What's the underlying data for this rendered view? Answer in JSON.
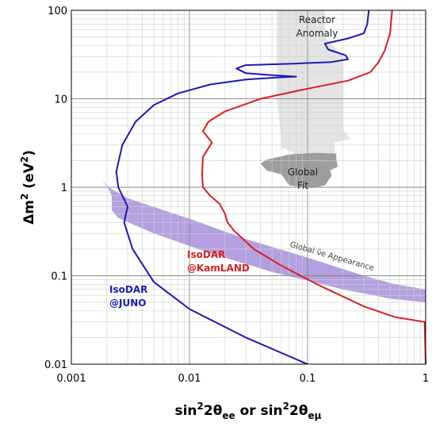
{
  "chart_data": {
    "type": "line",
    "xscale": "log",
    "yscale": "log",
    "xlim": [
      0.001,
      1
    ],
    "ylim": [
      0.01,
      100
    ],
    "grid": true,
    "xlabel_main": "sin",
    "xlabel_sup": "2",
    "xlabel_theta": "2θ",
    "xlabel_sub1": "ee",
    "xlabel_or": " or ",
    "xlabel_sub2": "eμ",
    "ylabel_main": "Δm",
    "ylabel_sup": "2",
    "ylabel_unit_open": " (eV",
    "ylabel_unit_sup": "2",
    "ylabel_unit_close": ")",
    "xticks": [
      {
        "v": 0.001,
        "label": "0.001"
      },
      {
        "v": 0.01,
        "label": "0.01"
      },
      {
        "v": 0.1,
        "label": "0.1"
      },
      {
        "v": 1,
        "label": "1"
      }
    ],
    "yticks": [
      {
        "v": 0.01,
        "label": "0.01"
      },
      {
        "v": 0.1,
        "label": "0.1"
      },
      {
        "v": 1,
        "label": "1"
      },
      {
        "v": 10,
        "label": "10"
      },
      {
        "v": 100,
        "label": "100"
      }
    ],
    "series": [
      {
        "name": "IsoDAR @JUNO",
        "color": "#1a1ab8",
        "points": [
          [
            0.1,
            0.01
          ],
          [
            0.03,
            0.02
          ],
          [
            0.01,
            0.042
          ],
          [
            0.005,
            0.085
          ],
          [
            0.0033,
            0.2
          ],
          [
            0.0028,
            0.4
          ],
          [
            0.003,
            0.6
          ],
          [
            0.0025,
            1.0
          ],
          [
            0.0024,
            1.5
          ],
          [
            0.0027,
            3
          ],
          [
            0.0035,
            5.5
          ],
          [
            0.005,
            8.5
          ],
          [
            0.008,
            11.5
          ],
          [
            0.015,
            14.5
          ],
          [
            0.03,
            16.5
          ],
          [
            0.06,
            17.5
          ],
          [
            0.08,
            17.8
          ],
          [
            0.05,
            18.5
          ],
          [
            0.03,
            19.5
          ],
          [
            0.025,
            22
          ],
          [
            0.03,
            24
          ],
          [
            0.08,
            25
          ],
          [
            0.16,
            26
          ],
          [
            0.22,
            28
          ],
          [
            0.21,
            31
          ],
          [
            0.15,
            36
          ],
          [
            0.14,
            42
          ],
          [
            0.22,
            48
          ],
          [
            0.3,
            55
          ],
          [
            0.32,
            70
          ],
          [
            0.33,
            100
          ]
        ]
      },
      {
        "name": "IsoDAR @KamLAND",
        "color": "#d92020",
        "points": [
          [
            1,
            0.01
          ],
          [
            0.98,
            0.03
          ],
          [
            0.55,
            0.034
          ],
          [
            0.3,
            0.045
          ],
          [
            0.12,
            0.08
          ],
          [
            0.06,
            0.13
          ],
          [
            0.035,
            0.2
          ],
          [
            0.024,
            0.32
          ],
          [
            0.021,
            0.4
          ],
          [
            0.02,
            0.5
          ],
          [
            0.018,
            0.65
          ],
          [
            0.015,
            0.8
          ],
          [
            0.013,
            1.0
          ],
          [
            0.0128,
            1.4
          ],
          [
            0.013,
            2.2
          ],
          [
            0.0155,
            3.2
          ],
          [
            0.013,
            4.3
          ],
          [
            0.0145,
            5.5
          ],
          [
            0.02,
            7.2
          ],
          [
            0.04,
            10
          ],
          [
            0.1,
            13
          ],
          [
            0.22,
            16
          ],
          [
            0.34,
            20
          ],
          [
            0.4,
            26
          ],
          [
            0.45,
            35
          ],
          [
            0.5,
            55
          ],
          [
            0.52,
            100
          ]
        ]
      }
    ],
    "regions": [
      {
        "name": "Reactor Anomaly",
        "color": "#e4e4e4",
        "points": [
          [
            0.055,
            100
          ],
          [
            0.14,
            100
          ],
          [
            0.14,
            50
          ],
          [
            0.2,
            30
          ],
          [
            0.2,
            10
          ],
          [
            0.2,
            4.5
          ],
          [
            0.23,
            3.5
          ],
          [
            0.17,
            3.2
          ],
          [
            0.17,
            2.2
          ],
          [
            0.12,
            1.5
          ],
          [
            0.08,
            2.0
          ],
          [
            0.075,
            2.5
          ],
          [
            0.06,
            2.8
          ],
          [
            0.06,
            3.5
          ],
          [
            0.055,
            10
          ],
          [
            0.055,
            100
          ]
        ]
      },
      {
        "name": "Global Fit",
        "color": "#9d9d9d",
        "points": [
          [
            0.045,
            2.05
          ],
          [
            0.07,
            2.35
          ],
          [
            0.12,
            2.45
          ],
          [
            0.175,
            2.4
          ],
          [
            0.175,
            2.1
          ],
          [
            0.18,
            1.7
          ],
          [
            0.155,
            1.55
          ],
          [
            0.16,
            1.35
          ],
          [
            0.14,
            1.05
          ],
          [
            0.11,
            0.98
          ],
          [
            0.09,
            1.0
          ],
          [
            0.07,
            1.05
          ],
          [
            0.06,
            1.4
          ],
          [
            0.045,
            1.55
          ],
          [
            0.04,
            1.85
          ],
          [
            0.045,
            2.05
          ]
        ]
      },
      {
        "name": "Global ν̄e Appearance",
        "color": "#b4a0e0",
        "points": [
          [
            0.0018,
            1.2
          ],
          [
            0.002,
            1.02
          ],
          [
            0.003,
            0.75
          ],
          [
            0.01,
            0.44
          ],
          [
            0.03,
            0.26
          ],
          [
            0.1,
            0.16
          ],
          [
            0.3,
            0.1
          ],
          [
            0.55,
            0.08
          ],
          [
            1,
            0.07
          ],
          [
            1,
            0.05
          ],
          [
            0.5,
            0.055
          ],
          [
            0.2,
            0.07
          ],
          [
            0.05,
            0.11
          ],
          [
            0.015,
            0.18
          ],
          [
            0.005,
            0.3
          ],
          [
            0.0025,
            0.45
          ],
          [
            0.0022,
            0.55
          ],
          [
            0.0022,
            0.8
          ],
          [
            0.002,
            1.05
          ],
          [
            0.0018,
            1.2
          ]
        ]
      }
    ],
    "annotations": [
      {
        "lines": [
          "Reactor",
          "Anomaly"
        ]
      },
      {
        "lines": [
          "Global",
          "Fit"
        ]
      },
      {
        "text": "Global ν̄e Appearance"
      }
    ],
    "curve_labels": [
      {
        "series": "IsoDAR @KamLAND",
        "lines": [
          "IsoDAR",
          "@KamLAND"
        ],
        "color": "#d92020"
      },
      {
        "series": "IsoDAR @JUNO",
        "lines": [
          "IsoDAR",
          "@JUNO"
        ],
        "color": "#1a1ab8"
      }
    ]
  }
}
